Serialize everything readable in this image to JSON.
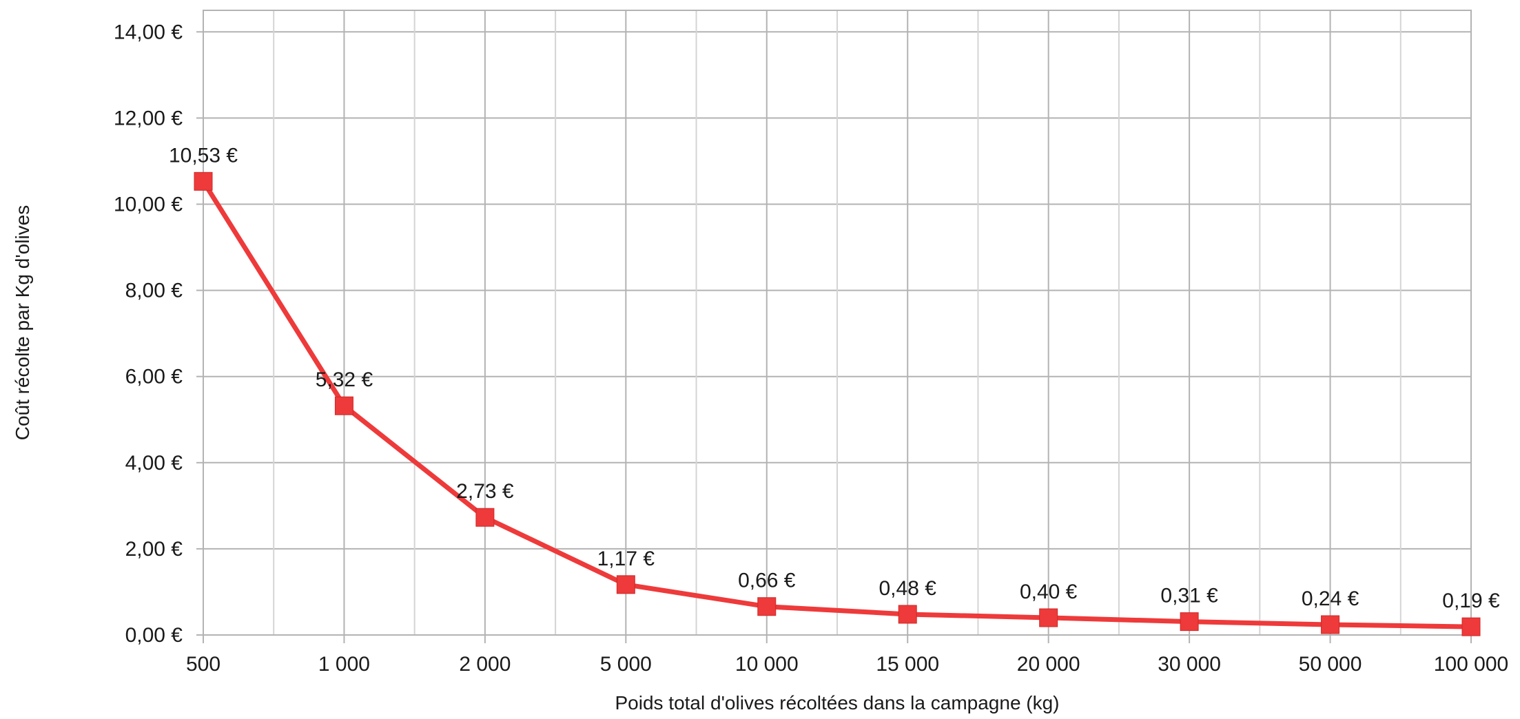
{
  "chart_data": {
    "type": "line",
    "categories": [
      "500",
      "1 000",
      "2 000",
      "5 000",
      "10 000",
      "15 000",
      "20 000",
      "30 000",
      "50 000",
      "100 000"
    ],
    "series": [
      {
        "values": [
          10.53,
          5.32,
          2.73,
          1.17,
          0.66,
          0.48,
          0.4,
          0.31,
          0.24,
          0.19
        ],
        "data_labels": [
          "10,53 €",
          "5,32 €",
          "2,73 €",
          "1,17 €",
          "0,66 €",
          "0,48 €",
          "0,40 €",
          "0,31 €",
          "0,24 €",
          "0,19 €"
        ],
        "color": "#ee3a3a"
      }
    ],
    "y_ticks": [
      0,
      2,
      4,
      6,
      8,
      10,
      12,
      14
    ],
    "y_tick_labels": [
      "0,00 €",
      "2,00 €",
      "4,00 €",
      "6,00 €",
      "8,00 €",
      "10,00 €",
      "12,00 €",
      "14,00 €"
    ],
    "ylim": [
      0,
      14.5
    ],
    "xlabel": "Poids total d'olives récoltées dans la campagne (kg)",
    "ylabel": "Coût récolte par Kg d'olives",
    "grid": true,
    "marker": "square"
  }
}
